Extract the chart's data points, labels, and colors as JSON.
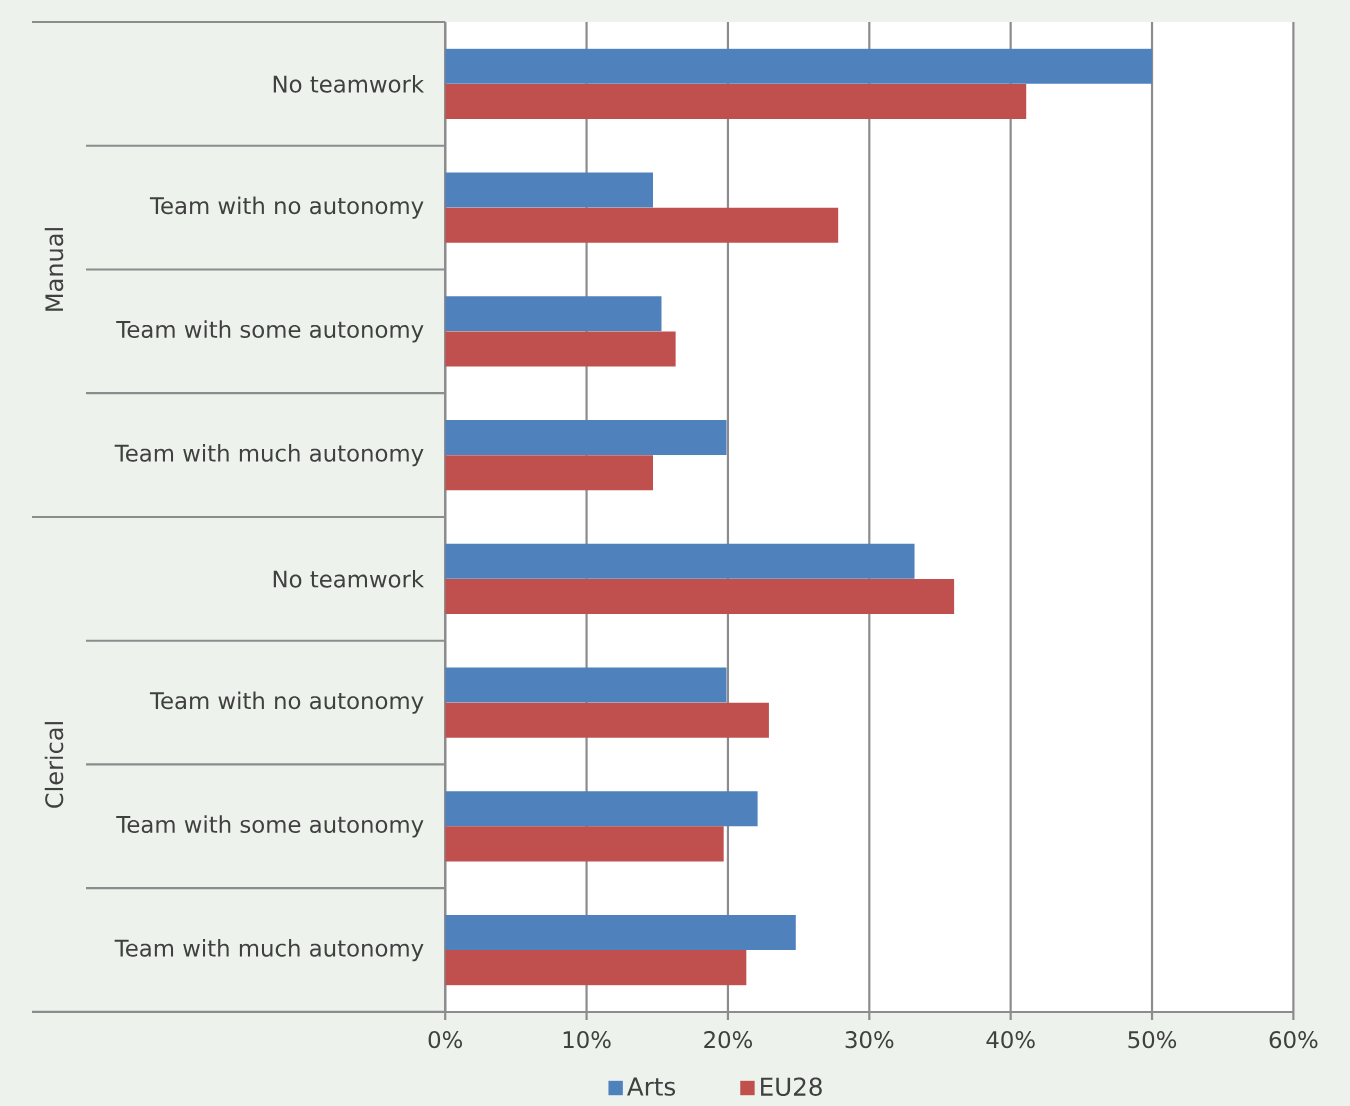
{
  "chart_data": {
    "type": "bar",
    "orientation": "horizontal",
    "categories": [
      "No teamwork",
      "Team with no autonomy",
      "Team with some autonomy",
      "Team with much autonomy",
      "No teamwork",
      "Team with no autonomy",
      "Team with some autonomy",
      "Team with much autonomy"
    ],
    "series": [
      {
        "name": "Arts",
        "color": "#4f81bd",
        "values": [
          50.0,
          14.7,
          15.3,
          19.9,
          33.2,
          19.9,
          22.1,
          24.8
        ]
      },
      {
        "name": "EU28",
        "color": "#c0504d",
        "values": [
          41.1,
          27.8,
          16.3,
          14.7,
          36.0,
          22.9,
          19.7,
          21.3
        ]
      }
    ],
    "xlim": [
      0,
      60
    ],
    "xticks": [
      {
        "value": 0,
        "label": "0%"
      },
      {
        "value": 10,
        "label": "10%"
      },
      {
        "value": 20,
        "label": "20%"
      },
      {
        "value": 30,
        "label": "30%"
      },
      {
        "value": 40,
        "label": "40%"
      },
      {
        "value": 50,
        "label": "50%"
      },
      {
        "value": 60,
        "label": "60%"
      }
    ],
    "grid": "x",
    "legend": "bottom",
    "annotations": [
      "Manual",
      "Clerical"
    ]
  }
}
